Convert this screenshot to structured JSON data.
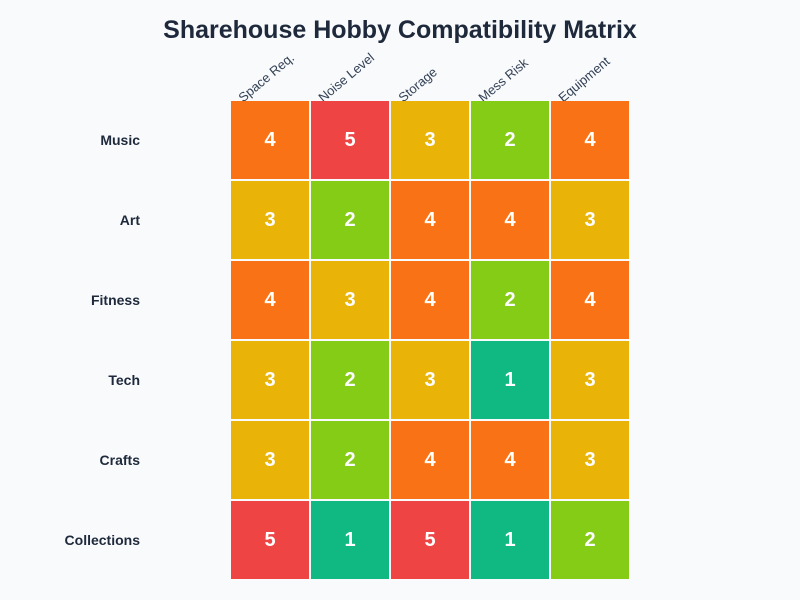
{
  "title": "Sharehouse Hobby Compatibility Matrix",
  "chart_data": {
    "type": "heatmap",
    "title": "Sharehouse Hobby Compatibility Matrix",
    "columns": [
      "Space Req.",
      "Noise Level",
      "Storage",
      "Mess Risk",
      "Equipment"
    ],
    "rows": [
      "Music",
      "Art",
      "Fitness",
      "Tech",
      "Crafts",
      "Collections"
    ],
    "values": [
      [
        4,
        5,
        3,
        2,
        4
      ],
      [
        3,
        2,
        4,
        4,
        3
      ],
      [
        4,
        3,
        4,
        2,
        4
      ],
      [
        3,
        2,
        3,
        1,
        3
      ],
      [
        3,
        2,
        4,
        4,
        3
      ],
      [
        5,
        1,
        5,
        1,
        2
      ]
    ],
    "color_scale": {
      "1": "#10b981",
      "2": "#84cc16",
      "3": "#eab308",
      "4": "#f97316",
      "5": "#ef4444"
    }
  }
}
